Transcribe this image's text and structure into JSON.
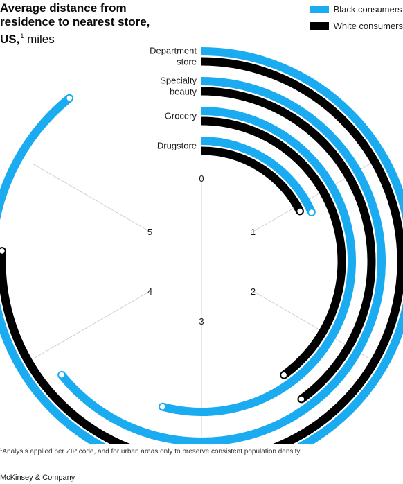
{
  "chart_data": {
    "type": "radial-bar",
    "title_bold": "Average distance from residence to nearest store, US,",
    "title_footnote_marker": "1",
    "title_unit": "miles",
    "categories": [
      "Department store",
      "Specialty beauty",
      "Grocery",
      "Drugstore"
    ],
    "category_labels": [
      [
        "Department",
        "store"
      ],
      [
        "Specialty",
        "beauty"
      ],
      [
        "Grocery"
      ],
      [
        "Drugstore"
      ]
    ],
    "series": [
      {
        "name": "Black consumers",
        "color": "#1aabf0",
        "values": [
          5.35,
          3.85,
          3.25,
          1.1
        ]
      },
      {
        "name": "White consumers",
        "color": "#000000",
        "values": [
          4.55,
          2.4,
          2.4,
          1.05
        ]
      }
    ],
    "axis": {
      "min": 0,
      "max": 6,
      "ticks": [
        0,
        1,
        2,
        3,
        4,
        5
      ]
    },
    "legend": "top-right",
    "grid": true
  },
  "footnote": {
    "marker": "1",
    "text": "Analysis applied per ZIP code, and for urban areas only to preserve consistent population density."
  },
  "source": "McKinsey & Company"
}
